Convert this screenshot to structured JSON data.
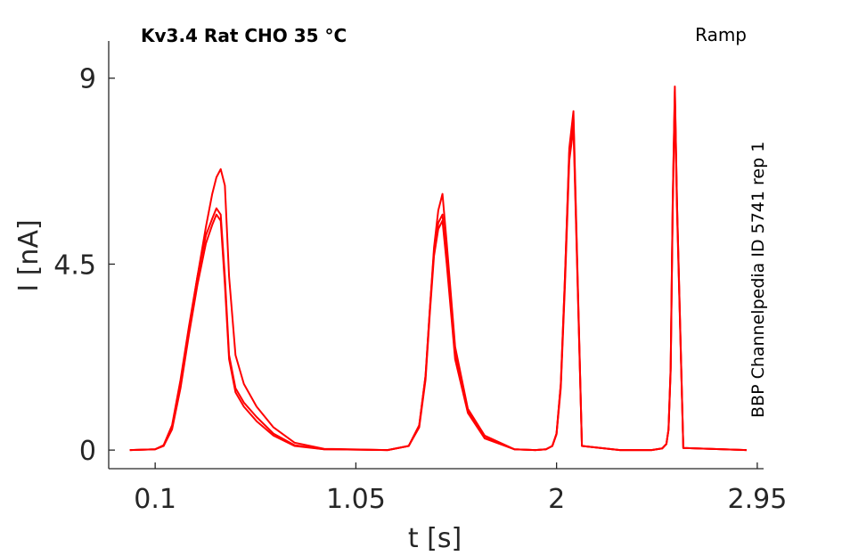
{
  "chart_data": {
    "type": "line",
    "title": "Kv3.4  Rat  CHO  35 °C",
    "protocol": "Ramp",
    "side_label": "BBP Channelpedia ID 5741 rep 1",
    "xlabel": "t [s]",
    "ylabel": "I [nA]",
    "xlim": [
      -0.12,
      2.98
    ],
    "ylim": [
      -0.45,
      9.9
    ],
    "xticks": [
      0.1,
      1.05,
      2,
      2.95
    ],
    "xtick_labels": [
      "0.1",
      "1.05",
      "2",
      "2.95"
    ],
    "yticks": [
      0,
      4.5,
      9
    ],
    "ytick_labels": [
      "0",
      "4.5",
      "9"
    ],
    "grid": false,
    "legend": "none",
    "line_color": "#ff0000",
    "series": [
      {
        "x": [
          -0.02,
          0.1,
          0.14,
          0.18,
          0.22,
          0.26,
          0.3,
          0.34,
          0.37,
          0.39,
          0.41,
          0.43,
          0.45,
          0.48,
          0.52,
          0.58,
          0.66,
          0.76,
          0.9,
          1.2,
          1.3,
          1.35,
          1.38,
          1.4,
          1.42,
          1.44,
          1.46,
          1.48,
          1.52,
          1.58,
          1.66,
          1.8,
          1.9,
          1.95,
          1.98,
          2.0,
          2.02,
          2.04,
          2.06,
          2.08,
          2.12,
          2.3,
          2.45,
          2.5,
          2.52,
          2.53,
          2.54,
          2.55,
          2.56,
          2.57,
          2.6,
          2.9
        ],
        "y": [
          0,
          0.02,
          0.1,
          0.55,
          1.6,
          2.9,
          4.2,
          5.4,
          6.2,
          6.6,
          6.8,
          6.4,
          4.2,
          2.3,
          1.6,
          1.05,
          0.55,
          0.18,
          0.03,
          0,
          0.1,
          0.6,
          1.8,
          3.4,
          4.9,
          5.8,
          6.2,
          5.0,
          2.5,
          1.0,
          0.35,
          0.02,
          0,
          0.02,
          0.1,
          0.4,
          1.6,
          4.2,
          7.3,
          8.2,
          0.1,
          0,
          0,
          0.04,
          0.15,
          0.5,
          2.0,
          6.0,
          8.8,
          6.0,
          0.05,
          0
        ]
      },
      {
        "x": [
          -0.02,
          0.1,
          0.14,
          0.18,
          0.22,
          0.26,
          0.3,
          0.34,
          0.37,
          0.39,
          0.41,
          0.43,
          0.45,
          0.48,
          0.52,
          0.58,
          0.66,
          0.76,
          0.9,
          1.2,
          1.3,
          1.35,
          1.38,
          1.4,
          1.42,
          1.44,
          1.46,
          1.48,
          1.52,
          1.58,
          1.66,
          1.8,
          1.9,
          1.95,
          1.98,
          2.0,
          2.02,
          2.04,
          2.06,
          2.08,
          2.12,
          2.3,
          2.45,
          2.5,
          2.52,
          2.53,
          2.54,
          2.55,
          2.56,
          2.57,
          2.6,
          2.9
        ],
        "y": [
          0,
          0.02,
          0.12,
          0.6,
          1.7,
          3.0,
          4.2,
          5.2,
          5.6,
          5.85,
          5.7,
          4.2,
          2.3,
          1.5,
          1.15,
          0.8,
          0.4,
          0.12,
          0.02,
          0,
          0.1,
          0.6,
          1.8,
          3.4,
          4.8,
          5.5,
          5.7,
          4.6,
          2.3,
          0.95,
          0.3,
          0.02,
          0,
          0.02,
          0.1,
          0.4,
          1.6,
          4.2,
          7.2,
          8.0,
          0.1,
          0,
          0,
          0.04,
          0.15,
          0.5,
          2.0,
          6.0,
          8.7,
          6.0,
          0.05,
          0
        ]
      },
      {
        "x": [
          -0.02,
          0.1,
          0.14,
          0.18,
          0.22,
          0.26,
          0.3,
          0.34,
          0.37,
          0.39,
          0.41,
          0.43,
          0.45,
          0.48,
          0.52,
          0.58,
          0.66,
          0.76,
          0.9,
          1.2,
          1.3,
          1.35,
          1.38,
          1.4,
          1.42,
          1.44,
          1.46,
          1.48,
          1.52,
          1.58,
          1.66,
          1.8,
          1.9,
          1.95,
          1.98,
          2.0,
          2.02,
          2.04,
          2.06,
          2.08,
          2.12,
          2.3,
          2.45,
          2.5,
          2.52,
          2.53,
          2.54,
          2.55,
          2.56,
          2.57,
          2.6,
          2.9
        ],
        "y": [
          0,
          0.02,
          0.1,
          0.5,
          1.5,
          2.8,
          4.0,
          5.0,
          5.45,
          5.7,
          5.55,
          4.0,
          2.2,
          1.4,
          1.05,
          0.7,
          0.35,
          0.1,
          0.02,
          0,
          0.1,
          0.55,
          1.7,
          3.3,
          4.7,
          5.35,
          5.55,
          4.5,
          2.2,
          0.9,
          0.28,
          0.02,
          0,
          0.02,
          0.1,
          0.38,
          1.5,
          4.0,
          7.0,
          7.8,
          0.1,
          0,
          0,
          0.04,
          0.14,
          0.48,
          1.9,
          5.8,
          8.5,
          5.8,
          0.05,
          0
        ]
      }
    ]
  }
}
